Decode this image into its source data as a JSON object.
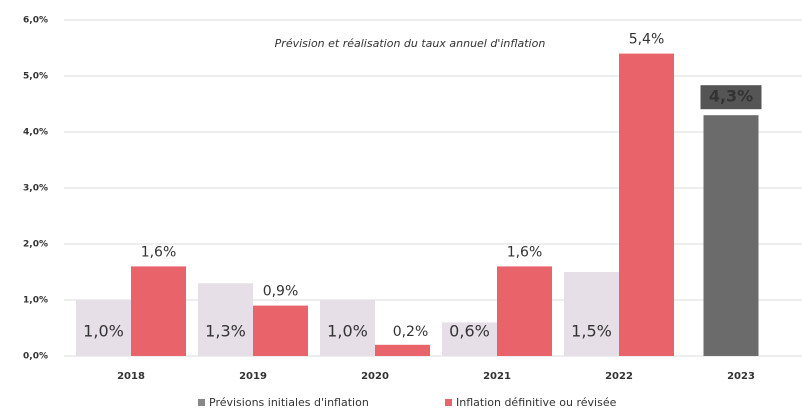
{
  "chart_data": {
    "type": "bar",
    "title": "Prévision et réalisation du taux annuel d'inflation",
    "categories": [
      "2018",
      "2019",
      "2020",
      "2021",
      "2022",
      "2023"
    ],
    "series": [
      {
        "name": "Prévisions initiales d'inflation",
        "color": "#e6dfe8",
        "colors": [
          "#e6dfe8",
          "#e6dfe8",
          "#e6dfe8",
          "#e6dfe8",
          "#e6dfe8",
          "#6b6b6b"
        ],
        "values": [
          1.0,
          1.3,
          1.0,
          0.6,
          1.5,
          4.3
        ],
        "value_labels": [
          "1,0%",
          "1,3%",
          "1,0%",
          "0,6%",
          "1,5%",
          "4,3%"
        ]
      },
      {
        "name": "Inflation définitive ou  révisée",
        "color": "#e8636a",
        "values": [
          1.6,
          0.9,
          0.2,
          1.6,
          5.4,
          null
        ],
        "value_labels": [
          "1,6%",
          "0,9%",
          "0,2%",
          "1,6%",
          "5,4%",
          null
        ]
      }
    ],
    "ylim": [
      0,
      6
    ],
    "yticks": [
      {
        "value": 0,
        "label": "0,0%"
      },
      {
        "value": 1,
        "label": "1,0%"
      },
      {
        "value": 2,
        "label": "2,0%"
      },
      {
        "value": 3,
        "label": "3,0%"
      },
      {
        "value": 4,
        "label": "4,0%"
      },
      {
        "value": 5,
        "label": "5,0%"
      },
      {
        "value": 6,
        "label": "6,0%"
      }
    ],
    "grid": true,
    "legend": "bottom"
  }
}
